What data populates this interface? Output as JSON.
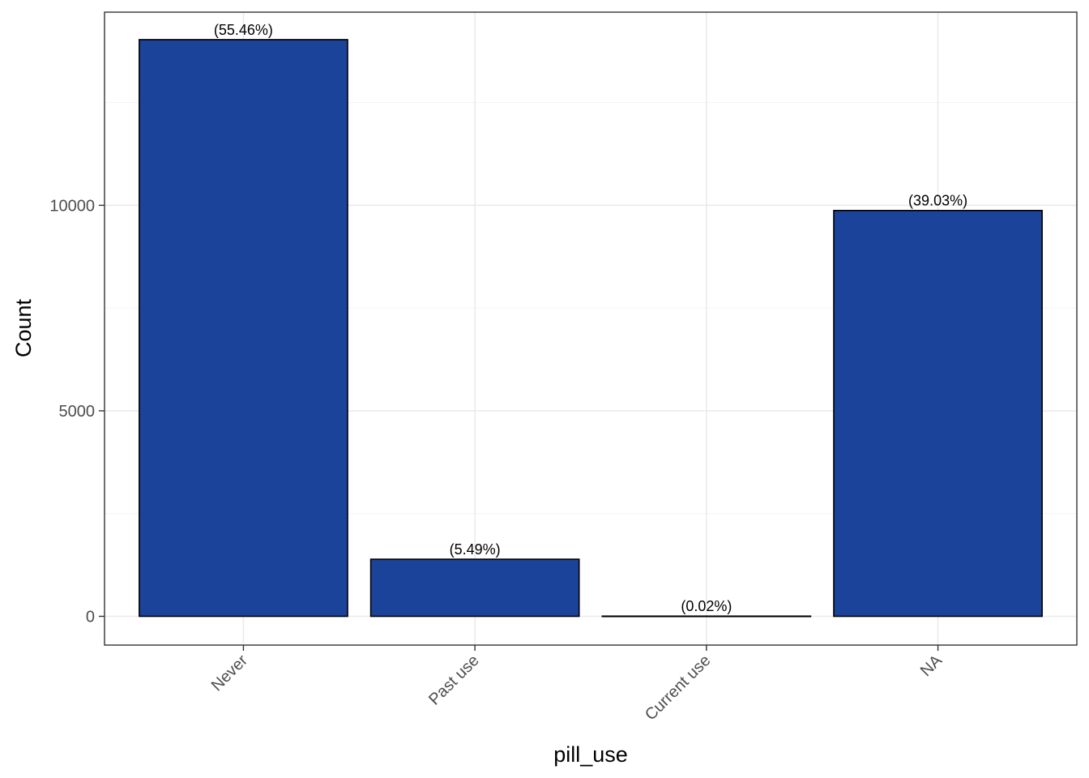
{
  "chart_data": {
    "type": "bar",
    "categories": [
      "Never",
      "Past use",
      "Current use",
      "NA"
    ],
    "values": [
      14031,
      1389,
      5,
      9874
    ],
    "labels": [
      "(55.46%)",
      "(5.49%)",
      "(0.02%)",
      "(39.03%)"
    ],
    "xlabel": "pill_use",
    "ylabel": "Count",
    "yticks": [
      0,
      5000,
      10000
    ],
    "ylim": [
      -700,
      14700
    ],
    "grid": true,
    "bar_color": "#1a4399",
    "bar_outline": "#000000"
  }
}
